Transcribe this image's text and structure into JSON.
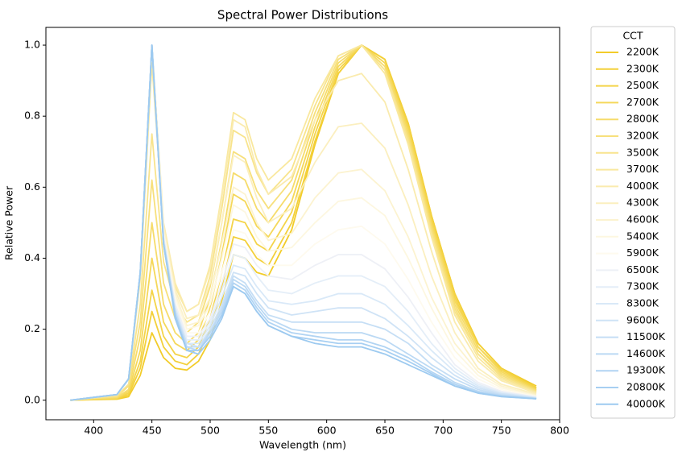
{
  "chart_data": {
    "type": "line",
    "title": "Spectral Power Distributions",
    "x_label": "Wavelength (nm)",
    "y_label": "Relative Power",
    "legend_title": "CCT",
    "legend": "outside right",
    "xlim": [
      359,
      800
    ],
    "ylim": [
      -0.055,
      1.05
    ],
    "xticks": [
      400,
      450,
      500,
      550,
      600,
      650,
      700,
      750,
      800
    ],
    "yticks": [
      {
        "value": 0,
        "label": "0.0"
      },
      {
        "value": 0.2,
        "label": "0.2"
      },
      {
        "value": 0.4,
        "label": "0.4"
      },
      {
        "value": 0.6,
        "label": "0.6"
      },
      {
        "value": 0.8,
        "label": "0.8"
      },
      {
        "value": 1,
        "label": "1.0"
      }
    ],
    "x": [
      380,
      420,
      430,
      440,
      450,
      460,
      470,
      480,
      490,
      500,
      510,
      520,
      530,
      540,
      550,
      570,
      590,
      610,
      630,
      650,
      670,
      690,
      710,
      730,
      750,
      780
    ],
    "series": [
      {
        "name": "2200K",
        "color": "#f2cc2a",
        "values": [
          0,
          0.003,
          0.01,
          0.07,
          0.19,
          0.12,
          0.09,
          0.085,
          0.11,
          0.17,
          0.28,
          0.41,
          0.4,
          0.36,
          0.35,
          0.48,
          0.72,
          0.92,
          1.0,
          0.96,
          0.78,
          0.52,
          0.3,
          0.16,
          0.09,
          0.04
        ]
      },
      {
        "name": "2300K",
        "color": "#f3d03a",
        "values": [
          0,
          0.004,
          0.015,
          0.09,
          0.25,
          0.15,
          0.11,
          0.1,
          0.13,
          0.2,
          0.32,
          0.46,
          0.45,
          0.4,
          0.38,
          0.5,
          0.73,
          0.92,
          1.0,
          0.96,
          0.78,
          0.52,
          0.3,
          0.16,
          0.09,
          0.035
        ]
      },
      {
        "name": "2500K",
        "color": "#f4d449",
        "values": [
          0,
          0.005,
          0.02,
          0.11,
          0.31,
          0.18,
          0.13,
          0.12,
          0.15,
          0.23,
          0.36,
          0.51,
          0.5,
          0.44,
          0.42,
          0.53,
          0.75,
          0.93,
          1.0,
          0.95,
          0.77,
          0.51,
          0.29,
          0.15,
          0.085,
          0.033
        ]
      },
      {
        "name": "2700K",
        "color": "#f5d85a",
        "values": [
          0,
          0.006,
          0.025,
          0.14,
          0.4,
          0.22,
          0.16,
          0.14,
          0.17,
          0.26,
          0.41,
          0.58,
          0.56,
          0.49,
          0.46,
          0.56,
          0.77,
          0.94,
          1.0,
          0.95,
          0.76,
          0.5,
          0.28,
          0.15,
          0.08,
          0.03
        ]
      },
      {
        "name": "2800K",
        "color": "#f6dc6b",
        "values": [
          0,
          0.008,
          0.03,
          0.18,
          0.5,
          0.27,
          0.19,
          0.16,
          0.19,
          0.29,
          0.45,
          0.64,
          0.62,
          0.54,
          0.5,
          0.59,
          0.79,
          0.95,
          1.0,
          0.94,
          0.75,
          0.49,
          0.27,
          0.14,
          0.075,
          0.028
        ]
      },
      {
        "name": "3200K",
        "color": "#f7e07c",
        "values": [
          0,
          0.01,
          0.04,
          0.22,
          0.62,
          0.33,
          0.23,
          0.19,
          0.22,
          0.32,
          0.5,
          0.7,
          0.68,
          0.59,
          0.54,
          0.62,
          0.81,
          0.96,
          1.0,
          0.93,
          0.74,
          0.48,
          0.26,
          0.13,
          0.07,
          0.026
        ]
      },
      {
        "name": "3500K",
        "color": "#f8e48d",
        "values": [
          0,
          0.012,
          0.045,
          0.27,
          0.75,
          0.39,
          0.27,
          0.22,
          0.24,
          0.35,
          0.54,
          0.76,
          0.74,
          0.64,
          0.58,
          0.65,
          0.83,
          0.97,
          1.0,
          0.93,
          0.73,
          0.47,
          0.25,
          0.13,
          0.065,
          0.024
        ]
      },
      {
        "name": "3700K",
        "color": "#f9e89e",
        "values": [
          0,
          0.015,
          0.06,
          0.34,
          0.95,
          0.48,
          0.32,
          0.25,
          0.27,
          0.38,
          0.58,
          0.81,
          0.79,
          0.68,
          0.62,
          0.68,
          0.85,
          0.97,
          1.0,
          0.92,
          0.72,
          0.46,
          0.24,
          0.12,
          0.06,
          0.022
        ]
      },
      {
        "name": "4000K",
        "color": "#faebae",
        "values": [
          0,
          0.016,
          0.06,
          0.36,
          1.0,
          0.5,
          0.33,
          0.25,
          0.27,
          0.37,
          0.57,
          0.79,
          0.77,
          0.65,
          0.58,
          0.63,
          0.79,
          0.9,
          0.92,
          0.84,
          0.65,
          0.42,
          0.22,
          0.11,
          0.055,
          0.02
        ]
      },
      {
        "name": "4300K",
        "color": "#fbefbf",
        "values": [
          0,
          0.016,
          0.06,
          0.36,
          1.0,
          0.49,
          0.31,
          0.23,
          0.24,
          0.33,
          0.5,
          0.69,
          0.67,
          0.57,
          0.5,
          0.54,
          0.67,
          0.77,
          0.78,
          0.71,
          0.55,
          0.35,
          0.19,
          0.09,
          0.045,
          0.017
        ]
      },
      {
        "name": "4600K",
        "color": "#fcf3d0",
        "values": [
          0,
          0.016,
          0.06,
          0.36,
          1.0,
          0.48,
          0.3,
          0.21,
          0.22,
          0.29,
          0.44,
          0.6,
          0.58,
          0.5,
          0.45,
          0.47,
          0.57,
          0.64,
          0.65,
          0.59,
          0.46,
          0.29,
          0.16,
          0.08,
          0.04,
          0.014
        ]
      },
      {
        "name": "5400K",
        "color": "#fdf7e0",
        "values": [
          0,
          0.016,
          0.06,
          0.36,
          1.0,
          0.47,
          0.29,
          0.2,
          0.21,
          0.27,
          0.4,
          0.55,
          0.53,
          0.46,
          0.42,
          0.43,
          0.5,
          0.56,
          0.57,
          0.52,
          0.4,
          0.26,
          0.14,
          0.07,
          0.035,
          0.012
        ]
      },
      {
        "name": "5900K",
        "color": "#fefaee",
        "values": [
          0,
          0.016,
          0.06,
          0.36,
          1.0,
          0.47,
          0.28,
          0.19,
          0.19,
          0.25,
          0.36,
          0.48,
          0.47,
          0.41,
          0.38,
          0.38,
          0.44,
          0.48,
          0.49,
          0.44,
          0.34,
          0.22,
          0.12,
          0.06,
          0.03,
          0.01
        ]
      },
      {
        "name": "6500K",
        "color": "#eef0f6",
        "values": [
          0,
          0.016,
          0.06,
          0.36,
          1.0,
          0.46,
          0.27,
          0.18,
          0.18,
          0.23,
          0.33,
          0.44,
          0.43,
          0.38,
          0.35,
          0.34,
          0.38,
          0.41,
          0.41,
          0.37,
          0.29,
          0.19,
          0.1,
          0.05,
          0.025,
          0.009
        ]
      },
      {
        "name": "7300K",
        "color": "#e4eef8",
        "values": [
          0,
          0.016,
          0.06,
          0.36,
          1.0,
          0.46,
          0.26,
          0.17,
          0.17,
          0.22,
          0.31,
          0.41,
          0.4,
          0.35,
          0.31,
          0.3,
          0.33,
          0.35,
          0.35,
          0.32,
          0.25,
          0.16,
          0.09,
          0.045,
          0.022,
          0.008
        ]
      },
      {
        "name": "8300K",
        "color": "#d9e9f8",
        "values": [
          0,
          0.016,
          0.06,
          0.36,
          1.0,
          0.45,
          0.26,
          0.16,
          0.16,
          0.21,
          0.29,
          0.38,
          0.37,
          0.32,
          0.28,
          0.27,
          0.28,
          0.3,
          0.3,
          0.27,
          0.21,
          0.14,
          0.08,
          0.04,
          0.02,
          0.007
        ]
      },
      {
        "name": "9600K",
        "color": "#cfe3f6",
        "values": [
          0,
          0.016,
          0.06,
          0.36,
          1.0,
          0.45,
          0.25,
          0.16,
          0.15,
          0.2,
          0.27,
          0.36,
          0.35,
          0.3,
          0.26,
          0.24,
          0.25,
          0.26,
          0.26,
          0.23,
          0.18,
          0.12,
          0.07,
          0.035,
          0.018,
          0.006
        ]
      },
      {
        "name": "11500K",
        "color": "#c5def5",
        "values": [
          0,
          0.016,
          0.06,
          0.36,
          1.0,
          0.45,
          0.25,
          0.15,
          0.15,
          0.19,
          0.26,
          0.35,
          0.33,
          0.28,
          0.24,
          0.22,
          0.22,
          0.22,
          0.22,
          0.2,
          0.16,
          0.1,
          0.06,
          0.03,
          0.015,
          0.005
        ]
      },
      {
        "name": "14600K",
        "color": "#bbd9f4",
        "values": [
          0,
          0.016,
          0.06,
          0.36,
          1.0,
          0.44,
          0.24,
          0.15,
          0.14,
          0.19,
          0.25,
          0.34,
          0.32,
          0.27,
          0.23,
          0.2,
          0.19,
          0.19,
          0.19,
          0.17,
          0.13,
          0.09,
          0.05,
          0.025,
          0.013,
          0.005
        ]
      },
      {
        "name": "19300K",
        "color": "#b1d4f3",
        "values": [
          0,
          0.016,
          0.06,
          0.36,
          1.0,
          0.44,
          0.24,
          0.14,
          0.14,
          0.18,
          0.24,
          0.33,
          0.31,
          0.26,
          0.22,
          0.19,
          0.18,
          0.17,
          0.17,
          0.15,
          0.12,
          0.08,
          0.045,
          0.022,
          0.012,
          0.004
        ]
      },
      {
        "name": "20800K",
        "color": "#a7cff2",
        "values": [
          0,
          0.016,
          0.06,
          0.36,
          1.0,
          0.44,
          0.24,
          0.14,
          0.14,
          0.18,
          0.24,
          0.32,
          0.3,
          0.25,
          0.21,
          0.18,
          0.17,
          0.16,
          0.16,
          0.14,
          0.11,
          0.075,
          0.04,
          0.02,
          0.011,
          0.004
        ]
      },
      {
        "name": "40000K",
        "color": "#9dcaf0",
        "values": [
          0,
          0.016,
          0.06,
          0.36,
          1.0,
          0.44,
          0.23,
          0.14,
          0.13,
          0.17,
          0.23,
          0.32,
          0.3,
          0.25,
          0.21,
          0.18,
          0.16,
          0.15,
          0.15,
          0.13,
          0.1,
          0.07,
          0.04,
          0.02,
          0.01,
          0.004
        ]
      }
    ]
  }
}
